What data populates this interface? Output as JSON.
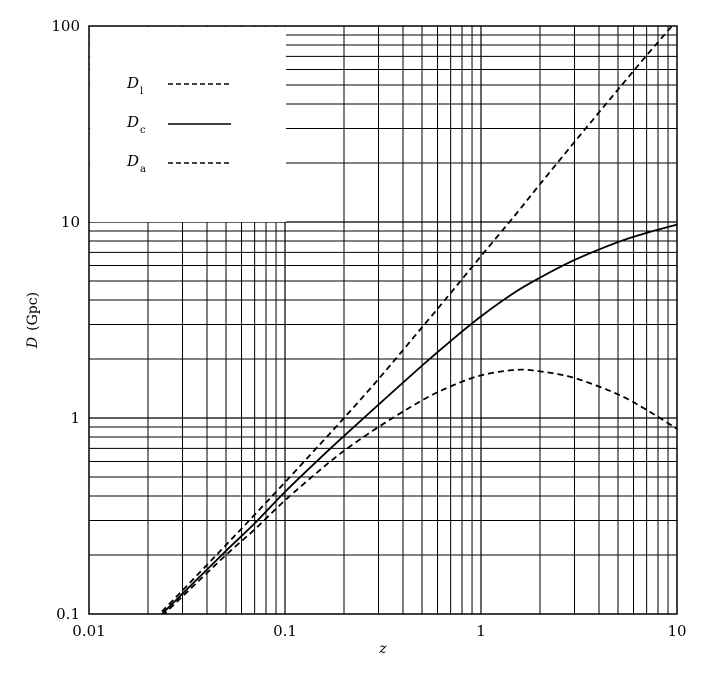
{
  "chart_data": {
    "type": "line",
    "title": "",
    "xlabel": "z",
    "ylabel": "D (Gpc)",
    "xscale": "log",
    "yscale": "log",
    "xlim": [
      0.01,
      10
    ],
    "ylim": [
      0.1,
      100
    ],
    "grid": true,
    "legend_position": "upper left",
    "x_tick_labels": [
      "0.01",
      "0.1",
      "1",
      "10"
    ],
    "y_tick_labels": [
      "0.1",
      "1",
      "10",
      "100"
    ],
    "x": [
      0.02,
      0.03,
      0.05,
      0.07,
      0.1,
      0.15,
      0.2,
      0.3,
      0.5,
      0.7,
      1,
      1.5,
      2,
      3,
      5,
      7,
      10
    ],
    "series": [
      {
        "name": "D_l",
        "label_main": "D",
        "label_sub": "l",
        "style": "dashed",
        "values": [
          0.087,
          0.132,
          0.225,
          0.321,
          0.47,
          0.73,
          1.0,
          1.58,
          2.9,
          4.34,
          6.7,
          10.9,
          15.6,
          25.6,
          47.4,
          70.8,
          107
        ]
      },
      {
        "name": "D_c",
        "label_main": "D",
        "label_sub": "c",
        "style": "solid",
        "values": [
          0.085,
          0.127,
          0.21,
          0.29,
          0.42,
          0.62,
          0.81,
          1.17,
          1.85,
          2.47,
          3.3,
          4.4,
          5.2,
          6.4,
          7.9,
          8.8,
          9.7
        ]
      },
      {
        "name": "D_a",
        "label_main": "D",
        "label_sub": "a",
        "style": "dashed",
        "values": [
          0.083,
          0.123,
          0.2,
          0.27,
          0.38,
          0.54,
          0.68,
          0.9,
          1.23,
          1.45,
          1.65,
          1.76,
          1.73,
          1.6,
          1.32,
          1.1,
          0.88
        ]
      }
    ]
  },
  "axes": {
    "x_label": "z",
    "y_label_main": "D",
    "y_label_unit": "(Gpc)"
  },
  "legend": {
    "items": [
      {
        "main": "D",
        "sub": "l",
        "style": "dashed"
      },
      {
        "main": "D",
        "sub": "c",
        "style": "solid"
      },
      {
        "main": "D",
        "sub": "a",
        "style": "dashed"
      }
    ]
  },
  "colors": {
    "line": "#000000",
    "grid": "#000000",
    "background": "#ffffff"
  }
}
